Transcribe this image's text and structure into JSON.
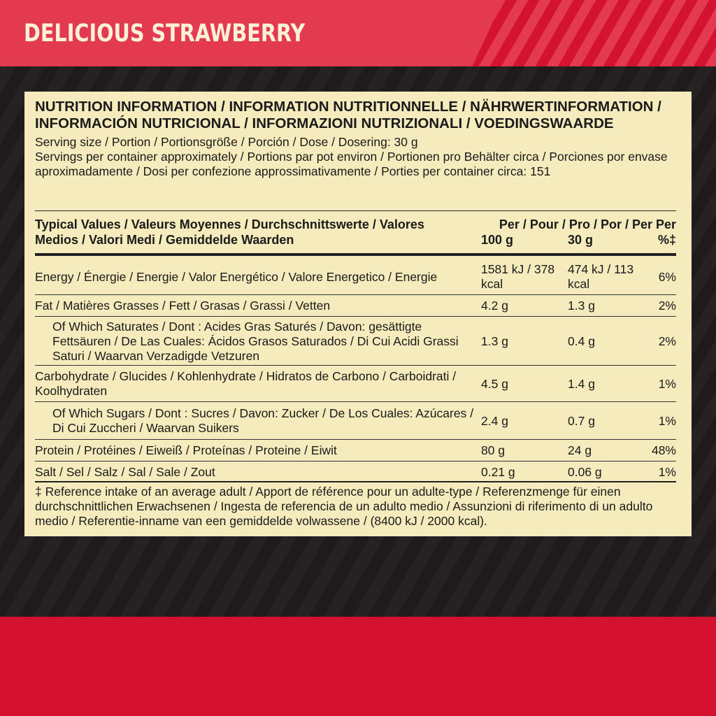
{
  "banner": {
    "title": "DELICIOUS STRAWBERRY"
  },
  "panel": {
    "heading": "NUTRITION INFORMATION / INFORMATION NUTRITIONNELLE / NÄHRWERTINFORMATION / INFORMACIÓN NUTRICIONAL / INFORMAZIONI NUTRIZIONALI / VOEDINGSWAARDE",
    "serving": "Serving size / Portion / Portionsgröße / Porción / Dose / Dosering: 30 g",
    "servings_per": "Servings per container approximately / Portions par pot environ / Portionen pro Behälter circa / Porciones por envase aproximadamente / Dosi per confezione approssimativamente / Porties per container circa: 151",
    "table": {
      "header": {
        "label": "Typical Values / Valeurs Moyennes / Durchschnittswerte / Valores Medios / Valori Medi / Gemiddelde Waarden",
        "per_line": "Per / Pour / Pro / Por / Per Per",
        "col1": "100 g",
        "col2": "30 g",
        "col3": "%‡"
      },
      "rows": [
        {
          "label": "Energy / Énergie / Energie / Valor Energético / Valore Energetico / Energie",
          "v1": "1581 kJ / 378 kcal",
          "v2": "474 kJ / 113 kcal",
          "pct": "6%"
        },
        {
          "label": "Fat / Matières Grasses / Fett / Grasas / Grassi / Vetten",
          "v1": "4.2 g",
          "v2": "1.3 g",
          "pct": "2%"
        },
        {
          "label": "Of Which Saturates / Dont : Acides Gras Saturés / Davon: gesättigte Fettsäuren / De Las Cuales: Ácidos Grasos Saturados / Di Cui Acidi Grassi Saturi / Waarvan Verzadigde Vetzuren",
          "v1": "1.3 g",
          "v2": "0.4 g",
          "pct": "2%"
        },
        {
          "label": "Carbohydrate / Glucides / Kohlenhydrate / Hidratos de Carbono / Carboidrati / Koolhydraten",
          "v1": "4.5 g",
          "v2": "1.4 g",
          "pct": "1%"
        },
        {
          "label": "Of Which Sugars / Dont : Sucres / Davon: Zucker / De Los Cuales: Azúcares / Di Cui Zuccheri / Waarvan Suikers",
          "v1": "2.4 g",
          "v2": "0.7 g",
          "pct": "1%"
        },
        {
          "label": "Protein / Protéines / Eiweiß / Proteínas / Proteine / Eiwit",
          "v1": "80 g",
          "v2": "24 g",
          "pct": "48%"
        },
        {
          "label": "Salt / Sel / Salz / Sal / Sale / Zout",
          "v1": "0.21 g",
          "v2": "0.06 g",
          "pct": "1%"
        }
      ]
    },
    "footnote": "‡ Reference intake of an average adult / Apport de référence pour un adulte-type / Referenzmenge für einen durchschnittlichen Erwachsenen / Ingesta de referencia de un adulto medio / Assunzioni di riferimento di un adulto medio / Referentie-inname van een gemiddelde volwassene / (8400 kJ / 2000 kcal)."
  },
  "colors": {
    "banner": "#e43a4f",
    "stripe": "#d3132f",
    "background": "#231f20",
    "bottom": "#d2122e",
    "panel": "#f5ebbd"
  }
}
